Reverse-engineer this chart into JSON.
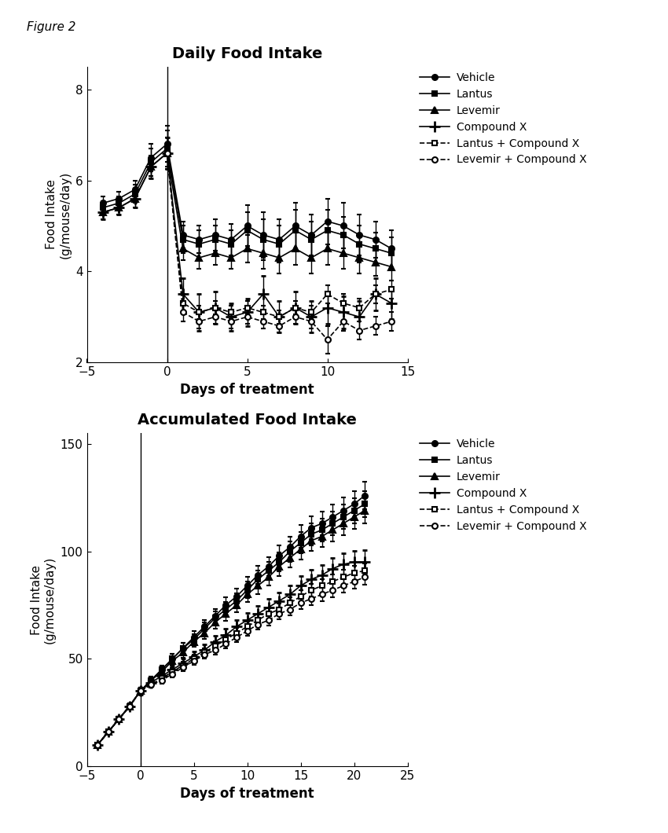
{
  "fig_label": "Figure 2",
  "figsize": [
    8.5,
    10.6
  ],
  "dpi": 100,
  "plot1": {
    "title": "Daily Food Intake",
    "xlabel": "Days of treatment",
    "ylabel": "Food Intake\n(g/mouse/day)",
    "xlim": [
      -5,
      15
    ],
    "ylim": [
      2,
      8.5
    ],
    "xticks": [
      -5,
      0,
      5,
      10,
      15
    ],
    "yticks": [
      2,
      4,
      6,
      8
    ],
    "series": {
      "Vehicle": {
        "x": [
          -4,
          -3,
          -2,
          -1,
          0,
          1,
          2,
          3,
          4,
          5,
          6,
          7,
          8,
          9,
          10,
          11,
          12,
          13,
          14
        ],
        "y": [
          5.5,
          5.6,
          5.8,
          6.5,
          6.8,
          4.8,
          4.7,
          4.8,
          4.7,
          5.0,
          4.8,
          4.7,
          5.0,
          4.8,
          5.1,
          5.0,
          4.8,
          4.7,
          4.5
        ],
        "yerr": [
          0.15,
          0.15,
          0.2,
          0.3,
          0.4,
          0.3,
          0.3,
          0.35,
          0.35,
          0.45,
          0.5,
          0.45,
          0.5,
          0.45,
          0.5,
          0.5,
          0.45,
          0.4,
          0.4
        ],
        "marker": "o",
        "linestyle": "-",
        "dashed": false
      },
      "Lantus": {
        "x": [
          -4,
          -3,
          -2,
          -1,
          0,
          1,
          2,
          3,
          4,
          5,
          6,
          7,
          8,
          9,
          10,
          11,
          12,
          13,
          14
        ],
        "y": [
          5.4,
          5.5,
          5.7,
          6.4,
          6.7,
          4.7,
          4.6,
          4.7,
          4.6,
          4.9,
          4.7,
          4.6,
          4.9,
          4.7,
          4.9,
          4.8,
          4.6,
          4.5,
          4.4
        ],
        "yerr": [
          0.15,
          0.15,
          0.2,
          0.3,
          0.4,
          0.3,
          0.3,
          0.3,
          0.3,
          0.4,
          0.45,
          0.4,
          0.45,
          0.4,
          0.45,
          0.4,
          0.4,
          0.35,
          0.35
        ],
        "marker": "s",
        "linestyle": "-",
        "dashed": false
      },
      "Levemir": {
        "x": [
          -4,
          -3,
          -2,
          -1,
          0,
          1,
          2,
          3,
          4,
          5,
          6,
          7,
          8,
          9,
          10,
          11,
          12,
          13,
          14
        ],
        "y": [
          5.3,
          5.4,
          5.6,
          6.3,
          6.6,
          4.5,
          4.3,
          4.4,
          4.3,
          4.5,
          4.4,
          4.3,
          4.5,
          4.3,
          4.5,
          4.4,
          4.3,
          4.2,
          4.1
        ],
        "yerr": [
          0.15,
          0.15,
          0.2,
          0.25,
          0.35,
          0.25,
          0.25,
          0.25,
          0.25,
          0.3,
          0.35,
          0.35,
          0.35,
          0.35,
          0.35,
          0.35,
          0.35,
          0.3,
          0.3
        ],
        "marker": "^",
        "linestyle": "-",
        "dashed": false
      },
      "Compound X": {
        "x": [
          -4,
          -3,
          -2,
          -1,
          0,
          1,
          2,
          3,
          4,
          5,
          6,
          7,
          8,
          9,
          10,
          11,
          12,
          13,
          14
        ],
        "y": [
          5.3,
          5.4,
          5.6,
          6.3,
          6.6,
          3.5,
          3.1,
          3.2,
          3.0,
          3.1,
          3.5,
          3.0,
          3.2,
          3.0,
          3.2,
          3.1,
          3.0,
          3.5,
          3.3
        ],
        "yerr": [
          0.15,
          0.15,
          0.2,
          0.25,
          0.35,
          0.35,
          0.4,
          0.35,
          0.3,
          0.3,
          0.4,
          0.35,
          0.35,
          0.35,
          0.35,
          0.35,
          0.35,
          0.35,
          0.35
        ],
        "marker": "+",
        "linestyle": "-",
        "dashed": false
      },
      "Lantus + Compound X": {
        "x": [
          0,
          1,
          2,
          3,
          4,
          5,
          6,
          7,
          8,
          9,
          10,
          11,
          12,
          13,
          14
        ],
        "y": [
          6.6,
          3.3,
          3.1,
          3.2,
          3.1,
          3.2,
          3.1,
          3.0,
          3.2,
          3.1,
          3.5,
          3.3,
          3.2,
          3.5,
          3.6
        ],
        "yerr": [
          0.35,
          0.2,
          0.15,
          0.15,
          0.15,
          0.15,
          0.15,
          0.15,
          0.15,
          0.15,
          0.2,
          0.2,
          0.2,
          0.2,
          0.2
        ],
        "marker": "s",
        "linestyle": "--",
        "dashed": true
      },
      "Levemir + Compound X": {
        "x": [
          0,
          1,
          2,
          3,
          4,
          5,
          6,
          7,
          8,
          9,
          10,
          11,
          12,
          13,
          14
        ],
        "y": [
          6.6,
          3.1,
          2.9,
          3.0,
          2.9,
          3.0,
          2.9,
          2.8,
          3.0,
          2.9,
          2.5,
          2.9,
          2.7,
          2.8,
          2.9
        ],
        "yerr": [
          0.35,
          0.2,
          0.15,
          0.15,
          0.15,
          0.15,
          0.15,
          0.15,
          0.15,
          0.15,
          0.3,
          0.2,
          0.2,
          0.2,
          0.2
        ],
        "marker": "o",
        "linestyle": "--",
        "dashed": true
      }
    },
    "legend_labels": [
      "Vehicle",
      "Lantus",
      "Levemir",
      "Compound X",
      "Lantus + Compound X",
      "Levemir + Compound X"
    ]
  },
  "plot2": {
    "title": "Accumulated Food Intake",
    "xlabel": "Days of treatment",
    "ylabel": "Food Intake\n(g/mouse/day)",
    "xlim": [
      -5,
      25
    ],
    "ylim": [
      0,
      155
    ],
    "xticks": [
      -5,
      0,
      5,
      10,
      15,
      20,
      25
    ],
    "yticks": [
      0,
      50,
      100,
      150
    ],
    "series": {
      "Vehicle": {
        "x": [
          -4,
          -3,
          -2,
          -1,
          0,
          1,
          2,
          3,
          4,
          5,
          6,
          7,
          8,
          9,
          10,
          11,
          12,
          13,
          14,
          15,
          16,
          17,
          18,
          19,
          20,
          21
        ],
        "y": [
          10,
          16,
          22,
          28,
          35,
          40,
          45,
          50,
          55,
          60,
          65,
          70,
          75,
          79,
          84,
          89,
          93,
          98,
          102,
          107,
          111,
          113,
          116,
          119,
          122,
          126
        ],
        "yerr": [
          0.5,
          0.8,
          1.0,
          1.2,
          1.5,
          1.7,
          2.0,
          2.2,
          2.5,
          2.8,
          3.0,
          3.2,
          3.5,
          3.7,
          4.0,
          4.2,
          4.4,
          4.7,
          4.9,
          5.2,
          5.4,
          5.6,
          5.8,
          6.0,
          6.2,
          6.5
        ],
        "marker": "o",
        "linestyle": "-",
        "dashed": false
      },
      "Lantus": {
        "x": [
          -4,
          -3,
          -2,
          -1,
          0,
          1,
          2,
          3,
          4,
          5,
          6,
          7,
          8,
          9,
          10,
          11,
          12,
          13,
          14,
          15,
          16,
          17,
          18,
          19,
          20,
          21
        ],
        "y": [
          10,
          16,
          22,
          28,
          35,
          40,
          45,
          50,
          55,
          59,
          64,
          69,
          73,
          77,
          82,
          87,
          91,
          95,
          100,
          104,
          108,
          110,
          113,
          116,
          119,
          122
        ],
        "yerr": [
          0.5,
          0.8,
          1.0,
          1.2,
          1.5,
          1.7,
          2.0,
          2.2,
          2.4,
          2.6,
          2.9,
          3.1,
          3.3,
          3.5,
          3.8,
          4.0,
          4.2,
          4.4,
          4.7,
          4.9,
          5.1,
          5.3,
          5.5,
          5.7,
          5.9,
          6.1
        ],
        "marker": "s",
        "linestyle": "-",
        "dashed": false
      },
      "Levemir": {
        "x": [
          -4,
          -3,
          -2,
          -1,
          0,
          1,
          2,
          3,
          4,
          5,
          6,
          7,
          8,
          9,
          10,
          11,
          12,
          13,
          14,
          15,
          16,
          17,
          18,
          19,
          20,
          21
        ],
        "y": [
          10,
          16,
          22,
          28,
          35,
          40,
          44,
          49,
          53,
          58,
          62,
          67,
          71,
          75,
          80,
          84,
          88,
          93,
          97,
          101,
          105,
          107,
          110,
          113,
          116,
          119
        ],
        "yerr": [
          0.5,
          0.8,
          1.0,
          1.2,
          1.5,
          1.7,
          1.9,
          2.1,
          2.3,
          2.5,
          2.8,
          3.0,
          3.2,
          3.4,
          3.6,
          3.8,
          4.0,
          4.3,
          4.5,
          4.7,
          4.9,
          5.1,
          5.3,
          5.5,
          5.7,
          5.9
        ],
        "marker": "^",
        "linestyle": "-",
        "dashed": false
      },
      "Compound X": {
        "x": [
          -4,
          -3,
          -2,
          -1,
          0,
          1,
          2,
          3,
          4,
          5,
          6,
          7,
          8,
          9,
          10,
          11,
          12,
          13,
          14,
          15,
          16,
          17,
          18,
          19,
          20,
          21
        ],
        "y": [
          10,
          16,
          22,
          28,
          35,
          39,
          42,
          45,
          48,
          51,
          54,
          58,
          61,
          65,
          68,
          71,
          74,
          77,
          80,
          84,
          87,
          89,
          92,
          94,
          95,
          95
        ],
        "yerr": [
          0.5,
          0.8,
          1.0,
          1.2,
          1.5,
          1.6,
          1.8,
          2.0,
          2.2,
          2.4,
          2.6,
          2.8,
          3.0,
          3.2,
          3.4,
          3.6,
          3.8,
          4.0,
          4.2,
          4.4,
          4.6,
          4.8,
          5.0,
          5.2,
          5.4,
          5.5
        ],
        "marker": "+",
        "linestyle": "-",
        "dashed": false
      },
      "Lantus + Compound X": {
        "x": [
          -4,
          -3,
          -2,
          -1,
          0,
          1,
          2,
          3,
          4,
          5,
          6,
          7,
          8,
          9,
          10,
          11,
          12,
          13,
          14,
          15,
          16,
          17,
          18,
          19,
          20,
          21
        ],
        "y": [
          10,
          16,
          22,
          28,
          35,
          38,
          41,
          44,
          47,
          50,
          53,
          56,
          59,
          62,
          65,
          68,
          71,
          73,
          76,
          79,
          82,
          84,
          86,
          88,
          90,
          91
        ],
        "yerr": [
          0.5,
          0.8,
          1.0,
          1.2,
          1.5,
          1.5,
          1.6,
          1.7,
          1.8,
          1.9,
          2.0,
          2.1,
          2.2,
          2.3,
          2.4,
          2.5,
          2.6,
          2.7,
          2.8,
          2.9,
          3.0,
          3.1,
          3.2,
          3.3,
          3.4,
          3.5
        ],
        "marker": "s",
        "linestyle": "--",
        "dashed": true
      },
      "Levemir + Compound X": {
        "x": [
          -4,
          -3,
          -2,
          -1,
          0,
          1,
          2,
          3,
          4,
          5,
          6,
          7,
          8,
          9,
          10,
          11,
          12,
          13,
          14,
          15,
          16,
          17,
          18,
          19,
          20,
          21
        ],
        "y": [
          10,
          16,
          22,
          28,
          35,
          38,
          40,
          43,
          46,
          49,
          52,
          54,
          57,
          60,
          63,
          66,
          68,
          71,
          73,
          76,
          78,
          80,
          82,
          84,
          86,
          88
        ],
        "yerr": [
          0.5,
          0.8,
          1.0,
          1.2,
          1.5,
          1.5,
          1.6,
          1.7,
          1.8,
          1.9,
          2.0,
          2.1,
          2.2,
          2.3,
          2.4,
          2.5,
          2.6,
          2.7,
          2.8,
          2.9,
          3.0,
          3.1,
          3.2,
          3.3,
          3.4,
          3.4
        ],
        "marker": "o",
        "linestyle": "--",
        "dashed": true
      }
    },
    "legend_labels": [
      "Vehicle",
      "Lantus",
      "Levemir",
      "Compound X",
      "Lantus + Compound X",
      "Levemir + Compound X"
    ]
  }
}
